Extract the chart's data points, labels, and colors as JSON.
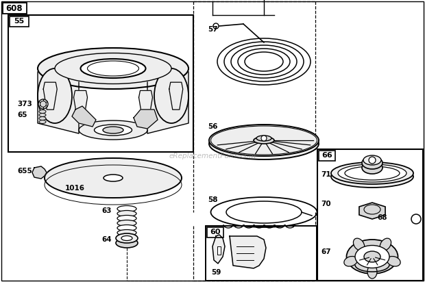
{
  "bg_color": "#ffffff",
  "watermark": "eReplacementParts.com",
  "lw_main": 1.3,
  "lw_thin": 0.8,
  "gray_fill": "#d8d8d8",
  "light_gray": "#eeeeee"
}
